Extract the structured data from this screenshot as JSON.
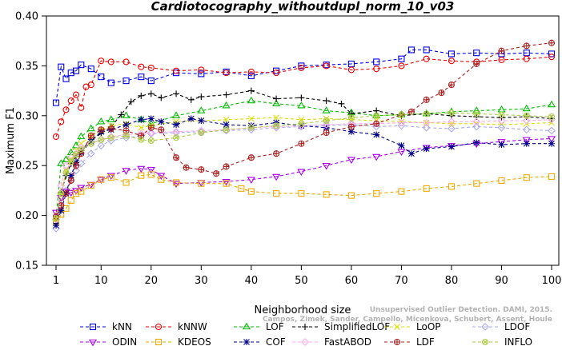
{
  "chart_data": {
    "type": "line",
    "title": "Cardiotocography_withoutdupl_norm_10_v03",
    "xlabel": "Neighborhood size",
    "ylabel": "Maximum F1",
    "xlim": [
      1,
      100
    ],
    "ylim": [
      0.15,
      0.4
    ],
    "xticks": [
      1,
      10,
      20,
      30,
      40,
      50,
      60,
      70,
      80,
      90,
      100
    ],
    "yticks": [
      0.15,
      0.2,
      0.25,
      0.3,
      0.35,
      0.4
    ],
    "xtick_labels": [
      "1",
      "10",
      "20",
      "30",
      "40",
      "50",
      "60",
      "70",
      "80",
      "90",
      "100"
    ],
    "ytick_labels": [
      "0.15",
      "0.20",
      "0.25",
      "0.30",
      "0.35",
      "0.40"
    ],
    "grid": false,
    "legend_position": "bottom",
    "watermark": [
      "Campos, Zimek, Sander, Campello, Micenkova, Schubert, Assent, Houle",
      "Unsupervised Outlier Detection. DAMI, 2015."
    ],
    "series": [
      {
        "name": "kNN",
        "color": "#0000ee",
        "marker": "square",
        "x": [
          1,
          2,
          3,
          4,
          5,
          6,
          8,
          10,
          12,
          15,
          18,
          20,
          25,
          30,
          35,
          40,
          45,
          50,
          55,
          60,
          65,
          70,
          72,
          75,
          80,
          85,
          90,
          95,
          100
        ],
        "y": [
          0.313,
          0.349,
          0.337,
          0.343,
          0.345,
          0.351,
          0.347,
          0.339,
          0.333,
          0.335,
          0.339,
          0.335,
          0.343,
          0.342,
          0.344,
          0.34,
          0.345,
          0.35,
          0.351,
          0.352,
          0.354,
          0.357,
          0.366,
          0.366,
          0.362,
          0.363,
          0.362,
          0.363,
          0.362
        ]
      },
      {
        "name": "kNNW",
        "color": "#ee0000",
        "marker": "circle",
        "x": [
          1,
          2,
          3,
          4,
          5,
          6,
          7,
          8,
          10,
          12,
          15,
          18,
          20,
          25,
          30,
          35,
          40,
          45,
          50,
          55,
          60,
          65,
          70,
          75,
          80,
          85,
          90,
          95,
          100
        ],
        "y": [
          0.279,
          0.294,
          0.306,
          0.315,
          0.321,
          0.308,
          0.329,
          0.331,
          0.355,
          0.354,
          0.354,
          0.349,
          0.348,
          0.345,
          0.346,
          0.343,
          0.344,
          0.343,
          0.348,
          0.35,
          0.346,
          0.347,
          0.35,
          0.357,
          0.355,
          0.354,
          0.356,
          0.357,
          0.359
        ]
      },
      {
        "name": "LOF",
        "color": "#00bb00",
        "marker": "triangle-up",
        "x": [
          1,
          2,
          3,
          4,
          5,
          6,
          8,
          10,
          12,
          15,
          18,
          20,
          25,
          30,
          35,
          40,
          45,
          50,
          55,
          60,
          65,
          70,
          75,
          80,
          85,
          90,
          95,
          100
        ],
        "y": [
          0.198,
          0.252,
          0.256,
          0.263,
          0.27,
          0.279,
          0.287,
          0.294,
          0.296,
          0.3,
          0.296,
          0.292,
          0.3,
          0.305,
          0.31,
          0.315,
          0.312,
          0.31,
          0.305,
          0.303,
          0.3,
          0.301,
          0.302,
          0.304,
          0.305,
          0.306,
          0.307,
          0.311
        ]
      },
      {
        "name": "SimplifiedLOF",
        "color": "#000000",
        "marker": "plus",
        "x": [
          1,
          2,
          3,
          4,
          5,
          6,
          8,
          10,
          12,
          14,
          16,
          18,
          20,
          22,
          25,
          28,
          30,
          35,
          40,
          45,
          50,
          55,
          58,
          60,
          65,
          70,
          75,
          80,
          85,
          90,
          95,
          100
        ],
        "y": [
          0.192,
          0.223,
          0.24,
          0.252,
          0.259,
          0.265,
          0.276,
          0.282,
          0.289,
          0.301,
          0.314,
          0.32,
          0.322,
          0.318,
          0.322,
          0.316,
          0.319,
          0.321,
          0.325,
          0.317,
          0.318,
          0.315,
          0.312,
          0.302,
          0.305,
          0.3,
          0.302,
          0.3,
          0.299,
          0.298,
          0.299,
          0.297
        ]
      },
      {
        "name": "LoOP",
        "color": "#dddd00",
        "marker": "cross",
        "x": [
          1,
          2,
          3,
          4,
          5,
          6,
          8,
          10,
          12,
          15,
          18,
          20,
          25,
          30,
          35,
          40,
          45,
          50,
          55,
          60,
          65,
          70,
          75,
          80,
          85,
          90,
          95,
          100
        ],
        "y": [
          0.196,
          0.22,
          0.245,
          0.256,
          0.265,
          0.272,
          0.28,
          0.286,
          0.29,
          0.292,
          0.288,
          0.29,
          0.294,
          0.295,
          0.296,
          0.297,
          0.298,
          0.296,
          0.297,
          0.296,
          0.295,
          0.294,
          0.293,
          0.292,
          0.292,
          0.291,
          0.292,
          0.293
        ]
      },
      {
        "name": "LDOF",
        "color": "#aaaaee",
        "marker": "diamond",
        "x": [
          1,
          2,
          3,
          4,
          5,
          6,
          8,
          10,
          12,
          15,
          18,
          20,
          25,
          30,
          35,
          40,
          45,
          50,
          55,
          60,
          65,
          70,
          75,
          80,
          85,
          90,
          95,
          100
        ],
        "y": [
          0.187,
          0.21,
          0.225,
          0.235,
          0.245,
          0.252,
          0.262,
          0.27,
          0.275,
          0.278,
          0.28,
          0.282,
          0.283,
          0.284,
          0.285,
          0.286,
          0.288,
          0.289,
          0.29,
          0.291,
          0.289,
          0.29,
          0.288,
          0.287,
          0.289,
          0.288,
          0.286,
          0.285
        ]
      },
      {
        "name": "ODIN",
        "color": "#aa00ee",
        "marker": "triangle-down",
        "x": [
          1,
          2,
          3,
          4,
          5,
          6,
          8,
          10,
          12,
          15,
          18,
          20,
          22,
          25,
          30,
          35,
          40,
          45,
          50,
          55,
          60,
          65,
          70,
          75,
          80,
          85,
          90,
          95,
          100
        ],
        "y": [
          0.203,
          0.218,
          0.224,
          0.223,
          0.225,
          0.228,
          0.231,
          0.236,
          0.24,
          0.245,
          0.247,
          0.246,
          0.24,
          0.232,
          0.233,
          0.234,
          0.236,
          0.239,
          0.244,
          0.25,
          0.256,
          0.259,
          0.264,
          0.268,
          0.27,
          0.272,
          0.274,
          0.276,
          0.277
        ]
      },
      {
        "name": "KDEOS",
        "color": "#eeaa00",
        "marker": "square",
        "x": [
          1,
          2,
          3,
          4,
          5,
          6,
          8,
          10,
          12,
          15,
          18,
          20,
          22,
          25,
          30,
          35,
          38,
          40,
          45,
          50,
          55,
          60,
          65,
          70,
          75,
          80,
          85,
          90,
          95,
          100
        ],
        "y": [
          0.193,
          0.201,
          0.207,
          0.215,
          0.222,
          0.224,
          0.23,
          0.236,
          0.238,
          0.233,
          0.24,
          0.241,
          0.236,
          0.233,
          0.232,
          0.232,
          0.227,
          0.224,
          0.222,
          0.222,
          0.221,
          0.22,
          0.222,
          0.224,
          0.227,
          0.229,
          0.232,
          0.235,
          0.238,
          0.239
        ]
      },
      {
        "name": "COF",
        "color": "#000088",
        "marker": "star",
        "x": [
          1,
          2,
          3,
          4,
          5,
          6,
          8,
          10,
          12,
          15,
          18,
          20,
          22,
          25,
          28,
          30,
          35,
          40,
          45,
          50,
          55,
          60,
          65,
          70,
          72,
          75,
          80,
          85,
          90,
          95,
          100
        ],
        "y": [
          0.19,
          0.205,
          0.222,
          0.24,
          0.253,
          0.263,
          0.274,
          0.284,
          0.286,
          0.291,
          0.296,
          0.297,
          0.294,
          0.291,
          0.297,
          0.295,
          0.291,
          0.29,
          0.293,
          0.29,
          0.288,
          0.284,
          0.281,
          0.27,
          0.262,
          0.267,
          0.269,
          0.273,
          0.271,
          0.272,
          0.272
        ]
      },
      {
        "name": "FastABOD",
        "color": "#ffaaee",
        "marker": "diamond",
        "x": [
          1,
          2,
          3,
          4,
          5,
          6,
          8,
          10,
          12,
          15,
          18,
          20,
          25,
          30,
          35,
          40,
          45,
          50,
          55,
          60,
          65,
          70,
          75,
          80,
          85,
          90,
          95,
          100
        ],
        "y": [
          0.196,
          0.23,
          0.25,
          0.258,
          0.262,
          0.268,
          0.272,
          0.276,
          0.279,
          0.281,
          0.282,
          0.283,
          0.284,
          0.285,
          0.286,
          0.288,
          0.289,
          0.29,
          0.291,
          0.292,
          0.292,
          0.293,
          0.293,
          0.294,
          0.294,
          0.295,
          0.295,
          0.296
        ]
      },
      {
        "name": "LDF",
        "color": "#aa2222",
        "marker": "circle-plus",
        "x": [
          1,
          2,
          3,
          4,
          5,
          6,
          8,
          10,
          12,
          15,
          18,
          20,
          22,
          25,
          27,
          30,
          33,
          35,
          40,
          45,
          50,
          55,
          60,
          65,
          70,
          72,
          75,
          78,
          80,
          85,
          90,
          95,
          100
        ],
        "y": [
          0.199,
          0.21,
          0.222,
          0.235,
          0.25,
          0.262,
          0.28,
          0.286,
          0.287,
          0.285,
          0.28,
          0.288,
          0.286,
          0.258,
          0.248,
          0.246,
          0.242,
          0.249,
          0.258,
          0.262,
          0.272,
          0.283,
          0.289,
          0.292,
          0.301,
          0.304,
          0.316,
          0.323,
          0.331,
          0.352,
          0.365,
          0.37,
          0.373
        ]
      },
      {
        "name": "INFLO",
        "color": "#aacc44",
        "marker": "circle-x",
        "x": [
          1,
          2,
          3,
          4,
          5,
          6,
          8,
          10,
          12,
          15,
          18,
          20,
          25,
          30,
          35,
          40,
          45,
          50,
          55,
          60,
          65,
          70,
          75,
          80,
          85,
          90,
          95,
          100
        ],
        "y": [
          0.197,
          0.222,
          0.243,
          0.254,
          0.261,
          0.266,
          0.272,
          0.276,
          0.278,
          0.28,
          0.276,
          0.275,
          0.278,
          0.283,
          0.286,
          0.288,
          0.29,
          0.292,
          0.295,
          0.298,
          0.3,
          0.301,
          0.302,
          0.303,
          0.302,
          0.301,
          0.3,
          0.299
        ]
      }
    ]
  }
}
